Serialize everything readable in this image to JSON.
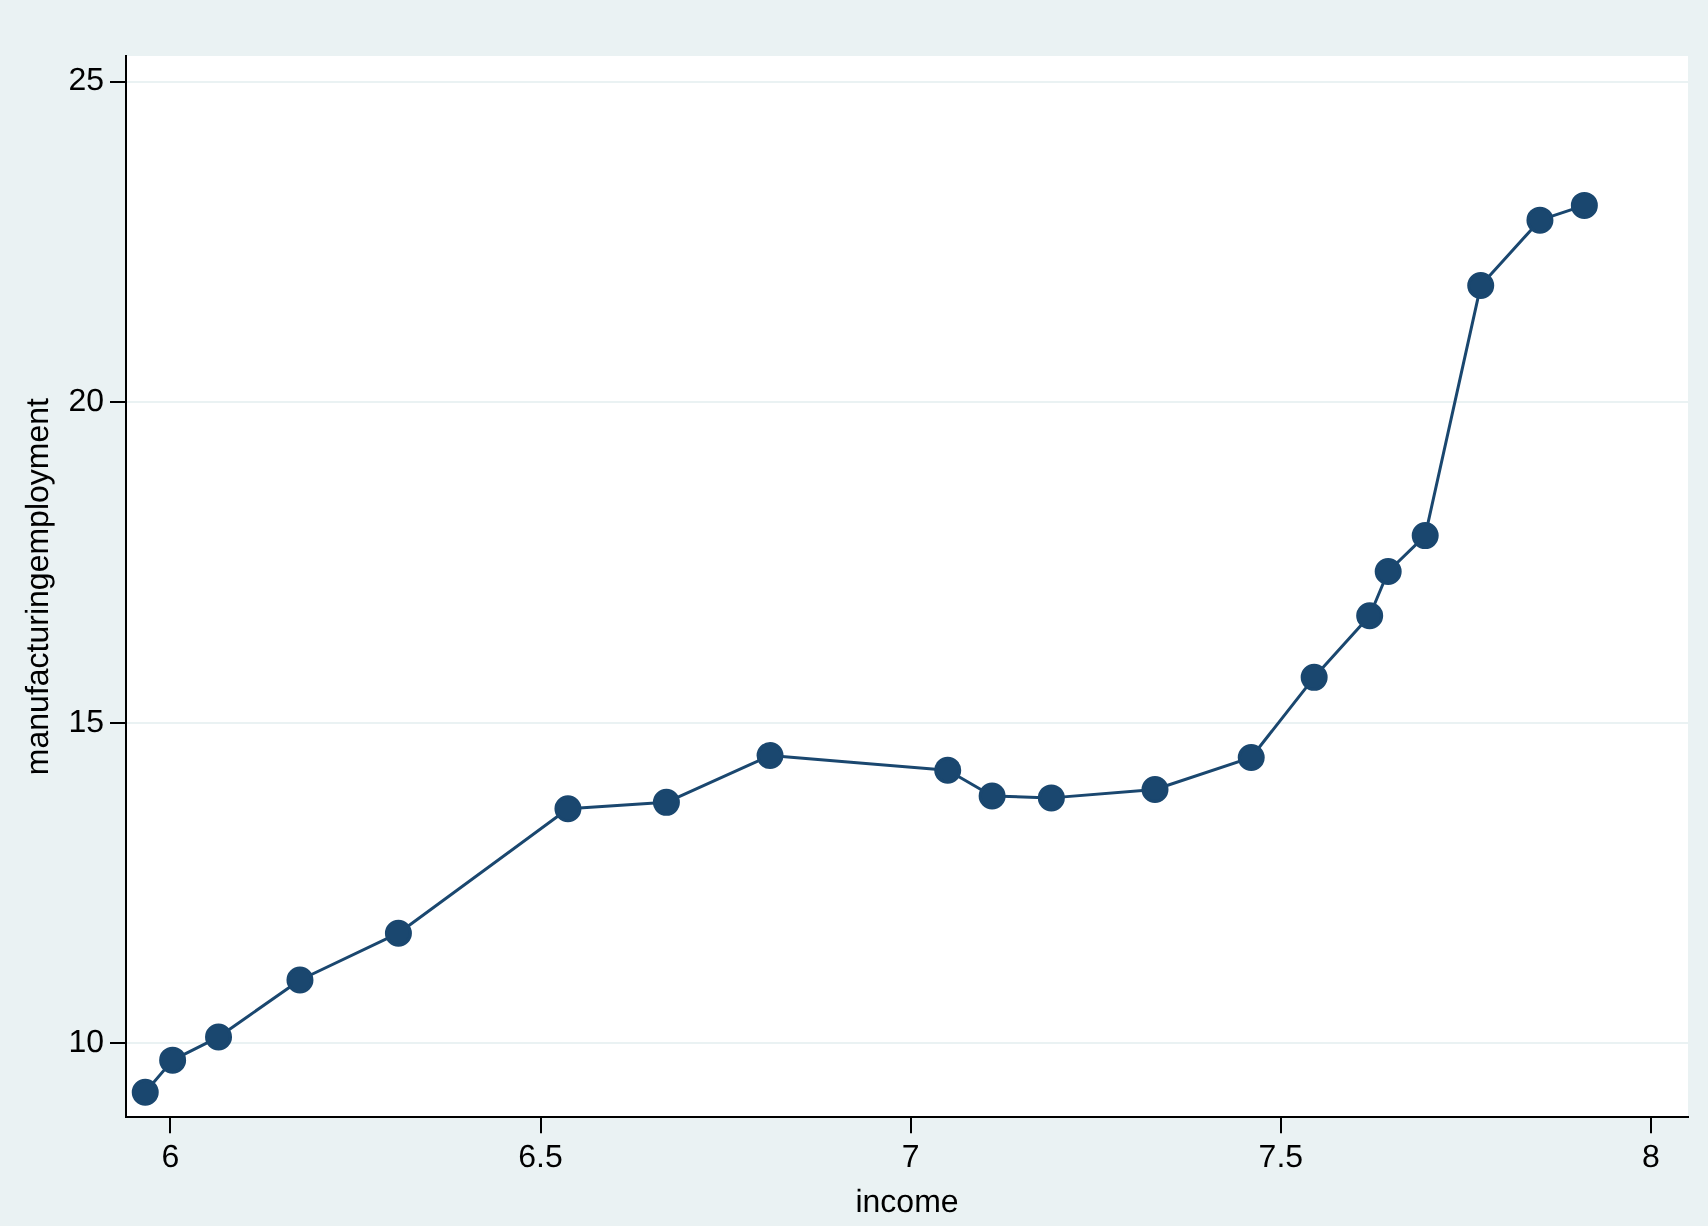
{
  "chart_data": {
    "type": "line",
    "xlabel": "income",
    "ylabel": "manufacturingemployment",
    "x": [
      5.966,
      6.003,
      6.065,
      6.175,
      6.308,
      6.537,
      6.67,
      6.81,
      7.05,
      7.11,
      7.19,
      7.33,
      7.46,
      7.545,
      7.62,
      7.645,
      7.695,
      7.77,
      7.85,
      7.91
    ],
    "series": [
      {
        "color": "#1a476f",
        "values": [
          9.24,
          9.74,
          10.1,
          10.99,
          11.72,
          13.66,
          13.76,
          14.49,
          14.26,
          13.86,
          13.83,
          13.96,
          14.46,
          15.71,
          16.67,
          17.36,
          17.92,
          21.82,
          22.84,
          23.07
        ]
      }
    ],
    "xlim": [
      5.94,
      8.05
    ],
    "ylim": [
      8.85,
      25.4
    ],
    "xticks": [
      6,
      6.5,
      7,
      7.5,
      8
    ],
    "yticks": [
      10,
      15,
      20,
      25
    ],
    "grid": "y",
    "legend": false,
    "marker": "circle",
    "line_style": "solid"
  }
}
